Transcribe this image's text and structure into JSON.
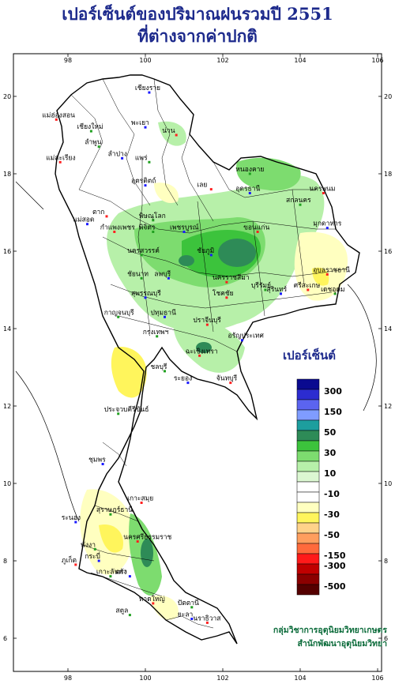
{
  "title": {
    "line1": "เปอร์เซ็นต์ของปริมาณฝนรวมปี 2551",
    "line2": "ที่ต่างจากค่าปกติ"
  },
  "axes": {
    "lon_ticks": [
      "98",
      "100",
      "102",
      "104",
      "106"
    ],
    "lat_ticks": [
      "20",
      "18",
      "16",
      "14",
      "12",
      "10",
      "8",
      "6"
    ]
  },
  "legend": {
    "title": "เปอร์เซ็นต์",
    "labels": [
      "300",
      "150",
      "50",
      "30",
      "10",
      "-10",
      "-30",
      "-50",
      "-150",
      "-300",
      "-500"
    ],
    "colors": [
      "#0a0a90",
      "#2c2cd0",
      "#5b64ef",
      "#7f9cff",
      "#1d9e9e",
      "#2e8b57",
      "#3cc33c",
      "#7ddc6f",
      "#b7f0a9",
      "#dcf7d2",
      "#ffffff",
      "#ffffff",
      "#ffffc0",
      "#fff55c",
      "#ffd28a",
      "#ff9e5e",
      "#ff6a3c",
      "#ff1a1a",
      "#c00000",
      "#8b0000",
      "#550000"
    ]
  },
  "provinces": [
    {
      "name": "เชียงราย",
      "lon": 100.1,
      "lat": 20.1
    },
    {
      "name": "แม่ฮ่องสอน",
      "lon": 97.7,
      "lat": 19.4
    },
    {
      "name": "เชียงใหม่",
      "lon": 98.6,
      "lat": 19.1
    },
    {
      "name": "พะเยา",
      "lon": 100.0,
      "lat": 19.2
    },
    {
      "name": "น่าน",
      "lon": 100.8,
      "lat": 19.0
    },
    {
      "name": "ลำพูน",
      "lon": 98.8,
      "lat": 18.7
    },
    {
      "name": "ลำปาง",
      "lon": 99.4,
      "lat": 18.4
    },
    {
      "name": "แม่สะเรียง",
      "lon": 97.8,
      "lat": 18.3
    },
    {
      "name": "แพร่",
      "lon": 100.1,
      "lat": 18.3
    },
    {
      "name": "อุตรดิตถ์",
      "lon": 100.0,
      "lat": 17.7
    },
    {
      "name": "เลย",
      "lon": 101.7,
      "lat": 17.6
    },
    {
      "name": "หนองคาย",
      "lon": 102.7,
      "lat": 18.0
    },
    {
      "name": "อุดรธานี",
      "lon": 102.7,
      "lat": 17.5
    },
    {
      "name": "นครพนม",
      "lon": 104.6,
      "lat": 17.5
    },
    {
      "name": "สกลนคร",
      "lon": 104.0,
      "lat": 17.2
    },
    {
      "name": "มุกดาหาร",
      "lon": 104.7,
      "lat": 16.6
    },
    {
      "name": "ตาก",
      "lon": 99.0,
      "lat": 16.9
    },
    {
      "name": "พิษณุโลก",
      "lon": 100.2,
      "lat": 16.8
    },
    {
      "name": "แม่สอด",
      "lon": 98.5,
      "lat": 16.7
    },
    {
      "name": "กำแพงเพชร",
      "lon": 99.2,
      "lat": 16.5
    },
    {
      "name": "พิจิตร",
      "lon": 100.2,
      "lat": 16.5
    },
    {
      "name": "เพชรบูรณ์",
      "lon": 101.0,
      "lat": 16.5
    },
    {
      "name": "ขอนแก่น",
      "lon": 102.9,
      "lat": 16.5
    },
    {
      "name": "นครสวรรค์",
      "lon": 99.9,
      "lat": 15.9
    },
    {
      "name": "ชัยภูมิ",
      "lon": 101.7,
      "lat": 15.9
    },
    {
      "name": "อุบลราชธานี",
      "lon": 104.7,
      "lat": 15.4
    },
    {
      "name": "ชัยนาท",
      "lon": 99.9,
      "lat": 15.3
    },
    {
      "name": "ลพบุรี",
      "lon": 100.6,
      "lat": 15.3
    },
    {
      "name": "นครราชสีมา",
      "lon": 102.1,
      "lat": 15.2
    },
    {
      "name": "บุรีรัมย์",
      "lon": 103.1,
      "lat": 15.0
    },
    {
      "name": "สุรินทร์",
      "lon": 103.5,
      "lat": 14.9
    },
    {
      "name": "ศรีสะเกษ",
      "lon": 104.2,
      "lat": 15.0
    },
    {
      "name": "เดชอุดม",
      "lon": 104.9,
      "lat": 14.9
    },
    {
      "name": "สุพรรณบุรี",
      "lon": 100.0,
      "lat": 14.8
    },
    {
      "name": "โชคชัย",
      "lon": 102.1,
      "lat": 14.8
    },
    {
      "name": "กาญจนบุรี",
      "lon": 99.3,
      "lat": 14.3
    },
    {
      "name": "ปทุมธานี",
      "lon": 100.5,
      "lat": 14.3
    },
    {
      "name": "ปราจีนบุรี",
      "lon": 101.6,
      "lat": 14.1
    },
    {
      "name": "กรุงเทพฯ",
      "lon": 100.3,
      "lat": 13.8
    },
    {
      "name": "อรัญประเทศ",
      "lon": 102.5,
      "lat": 13.7
    },
    {
      "name": "ฉะเชิงเทรา",
      "lon": 101.4,
      "lat": 13.3
    },
    {
      "name": "ชลบุรี",
      "lon": 100.5,
      "lat": 12.9
    },
    {
      "name": "ระยอง",
      "lon": 101.1,
      "lat": 12.6
    },
    {
      "name": "จันทบุรี",
      "lon": 102.2,
      "lat": 12.6
    },
    {
      "name": "ประจวบคีรีขันธ์",
      "lon": 99.3,
      "lat": 11.8
    },
    {
      "name": "ชุมพร",
      "lon": 98.9,
      "lat": 10.5
    },
    {
      "name": "เกาะสมุย",
      "lon": 99.9,
      "lat": 9.5
    },
    {
      "name": "สุราษฎร์ธานี",
      "lon": 99.1,
      "lat": 9.2
    },
    {
      "name": "ระนอง",
      "lon": 98.2,
      "lat": 9.0
    },
    {
      "name": "นครศรีธรรมราช",
      "lon": 99.8,
      "lat": 8.5
    },
    {
      "name": "พังงา",
      "lon": 98.7,
      "lat": 8.3
    },
    {
      "name": "กระบี่",
      "lon": 98.8,
      "lat": 8.0
    },
    {
      "name": "ภูเก็ต",
      "lon": 98.2,
      "lat": 7.9
    },
    {
      "name": "เกาะลันตา",
      "lon": 99.1,
      "lat": 7.6
    },
    {
      "name": "ตรัง",
      "lon": 99.6,
      "lat": 7.6
    },
    {
      "name": "หาดใหญ่",
      "lon": 100.2,
      "lat": 6.9
    },
    {
      "name": "ปัตตานี",
      "lon": 101.2,
      "lat": 6.8
    },
    {
      "name": "ยะลา",
      "lon": 101.2,
      "lat": 6.5
    },
    {
      "name": "นราธิวาส",
      "lon": 101.6,
      "lat": 6.4
    },
    {
      "name": "สตูล",
      "lon": 99.6,
      "lat": 6.6
    }
  ],
  "credit": {
    "line1": "กลุ่มวิชาการอุตุนิยมวิทยาเกษตร",
    "line2": "สำนักพัฒนาอุตุนิยมวิทยา"
  }
}
